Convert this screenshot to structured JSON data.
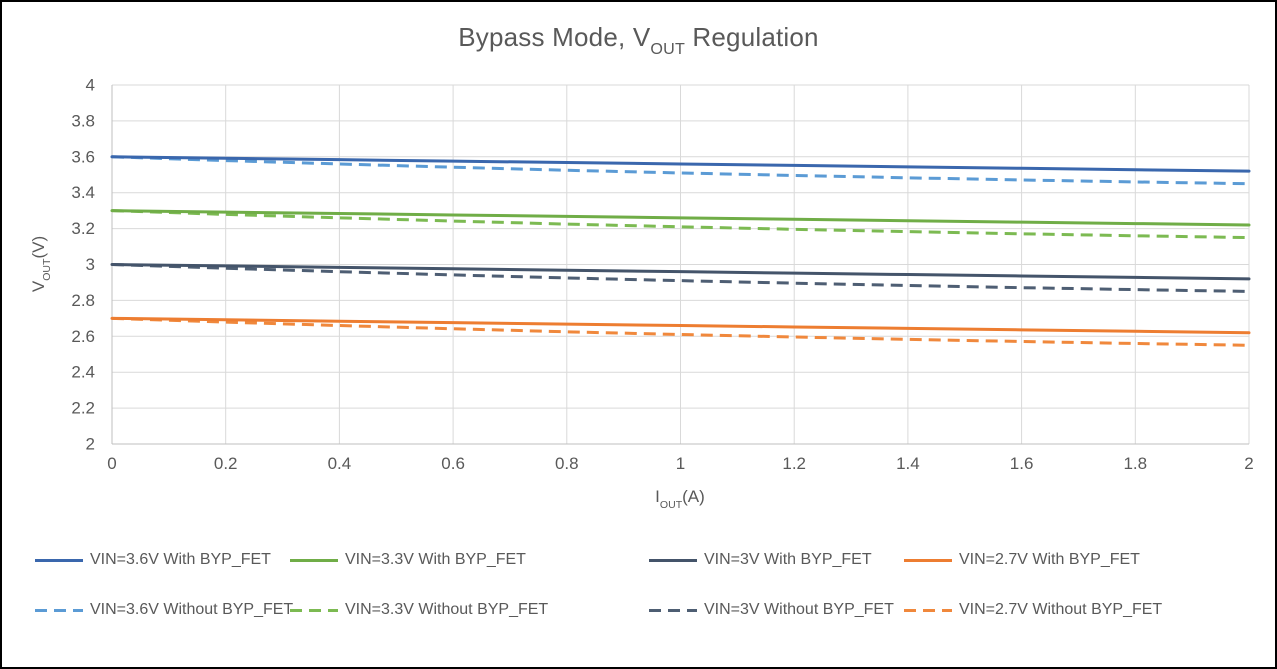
{
  "chart_data": {
    "type": "line",
    "title": {
      "pre": "Bypass Mode, V",
      "sub": "OUT",
      "post": " Regulation"
    },
    "xlabel": {
      "pre": "I",
      "sub": "OUT",
      "post": "(A)"
    },
    "ylabel": {
      "pre": "V",
      "sub": "OUT",
      "post": "(V)"
    },
    "xlim": [
      0,
      2
    ],
    "ylim": [
      2,
      4
    ],
    "grid": true,
    "legend_position": "bottom",
    "x_ticks": [
      "0",
      "0.2",
      "0.4",
      "0.6",
      "0.8",
      "1",
      "1.2",
      "1.4",
      "1.6",
      "1.8",
      "2"
    ],
    "y_ticks": [
      "4",
      "3.8",
      "3.6",
      "3.4",
      "3.2",
      "3",
      "2.8",
      "2.6",
      "2.4",
      "2.2",
      "2"
    ],
    "x": [
      0,
      0.2,
      0.4,
      0.6,
      0.8,
      1,
      1.2,
      1.4,
      1.6,
      1.8,
      2
    ],
    "series": [
      {
        "name": "VIN=3.6V With BYP_FET",
        "color": "#3A67AD",
        "dash": false,
        "values": [
          3.6,
          3.592,
          3.584,
          3.576,
          3.568,
          3.56,
          3.552,
          3.544,
          3.536,
          3.528,
          3.52
        ]
      },
      {
        "name": "VIN=3.3V With BYP_FET",
        "color": "#70AD47",
        "dash": false,
        "values": [
          3.3,
          3.292,
          3.284,
          3.276,
          3.268,
          3.26,
          3.252,
          3.244,
          3.236,
          3.228,
          3.22
        ]
      },
      {
        "name": "VIN=3V With BYP_FET",
        "color": "#44546A",
        "dash": false,
        "values": [
          3.0,
          2.992,
          2.984,
          2.976,
          2.968,
          2.96,
          2.952,
          2.944,
          2.936,
          2.928,
          2.92
        ]
      },
      {
        "name": "VIN=2.7V With BYP_FET",
        "color": "#ED7D31",
        "dash": false,
        "values": [
          2.7,
          2.692,
          2.684,
          2.676,
          2.668,
          2.66,
          2.652,
          2.644,
          2.636,
          2.628,
          2.62
        ]
      },
      {
        "name": "VIN=3.6V Without BYP_FET",
        "color": "#5B9BD5",
        "dash": true,
        "values": [
          3.6,
          3.579,
          3.56,
          3.542,
          3.525,
          3.51,
          3.496,
          3.483,
          3.471,
          3.46,
          3.45
        ]
      },
      {
        "name": "VIN=3.3V Without BYP_FET",
        "color": "#7CBA52",
        "dash": true,
        "values": [
          3.3,
          3.279,
          3.26,
          3.242,
          3.225,
          3.21,
          3.196,
          3.183,
          3.171,
          3.16,
          3.15
        ]
      },
      {
        "name": "VIN=3V Without BYP_FET",
        "color": "#4E5E73",
        "dash": true,
        "values": [
          3.0,
          2.979,
          2.96,
          2.942,
          2.925,
          2.91,
          2.896,
          2.883,
          2.871,
          2.86,
          2.85
        ]
      },
      {
        "name": "VIN=2.7V Without BYP_FET",
        "color": "#F0883C",
        "dash": true,
        "values": [
          2.7,
          2.679,
          2.66,
          2.642,
          2.625,
          2.61,
          2.596,
          2.583,
          2.571,
          2.56,
          2.55
        ]
      }
    ]
  },
  "theme": {
    "text_color": "#595959",
    "gridline_color": "#D9D9D9",
    "axis_color": "#BFBFBF",
    "border_color": "#000000",
    "background": "#FFFFFF"
  }
}
